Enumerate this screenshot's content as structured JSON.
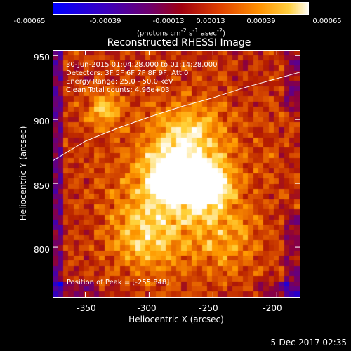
{
  "colorbar": {
    "ticks": [
      "-0.00065",
      "-0.00039",
      "-0.00013",
      "0.00013",
      "0.00039",
      "0.00065"
    ],
    "units_text": "(photons cm",
    "units_sup1": "-2",
    "units_mid1": " s",
    "units_sup2": "-1",
    "units_mid2": " asec",
    "units_sup3": "-2",
    "units_end": ")"
  },
  "plot": {
    "title": "Reconstructed RHESSI Image",
    "info_lines": [
      "30-Jun-2015 01:04:28.000 to 01:14:28.000",
      "Detectors: 3F 5F 6F 7F 8F 9F, Att 0",
      "Energy Range: 25.0 - 50.0 keV",
      "Clean     Total counts: 4.96e+03"
    ],
    "peak_label": "Position of Peak = [-255,848]",
    "timestamp": "5-Dec-2017 02:35"
  },
  "chart_data": {
    "type": "heatmap",
    "title": "Reconstructed RHESSI Image",
    "xlabel": "Heliocentric X (arcsec)",
    "ylabel": "Heliocentric Y (arcsec)",
    "xlim": [
      -375,
      -182
    ],
    "ylim": [
      761,
      954
    ],
    "x_ticks": [
      -350,
      -300,
      -250,
      -200
    ],
    "y_ticks": [
      800,
      850,
      900,
      950
    ],
    "colorbar_range": [
      -0.00065,
      0.00065
    ],
    "peak": [
      -255,
      848
    ],
    "colormap": [
      "#0000ff",
      "#2a00c8",
      "#5a0090",
      "#8a0040",
      "#b51d00",
      "#e05800",
      "#ff9a00",
      "#ffd23a",
      "#ffffff"
    ],
    "limb_curve": [
      [
        -375,
        868
      ],
      [
        -350,
        883
      ],
      [
        -325,
        893
      ],
      [
        -300,
        902
      ],
      [
        -275,
        910
      ],
      [
        -250,
        917
      ],
      [
        -225,
        925
      ],
      [
        -200,
        932
      ],
      [
        -182,
        937
      ]
    ]
  }
}
